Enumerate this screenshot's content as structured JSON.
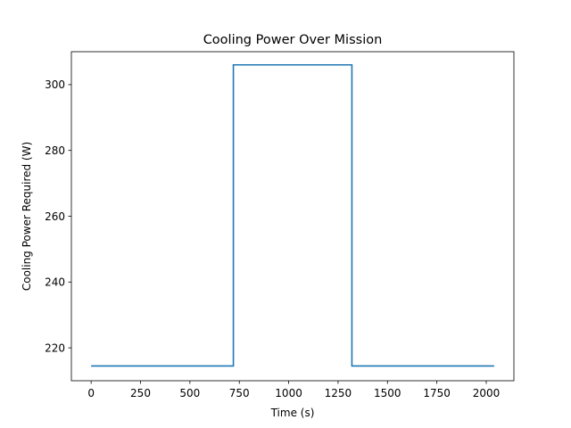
{
  "chart_data": {
    "type": "line",
    "title": "Cooling Power Over Mission",
    "xlabel": "Time (s)",
    "ylabel": "Cooling Power Required (W)",
    "xlim": [
      -100,
      2140
    ],
    "ylim": [
      210,
      310
    ],
    "xticks": [
      0,
      250,
      500,
      750,
      1000,
      1250,
      1500,
      1750,
      2000
    ],
    "yticks": [
      220,
      240,
      260,
      280,
      300
    ],
    "grid": false,
    "legend": "none",
    "series": [
      {
        "color": "#1f77b4",
        "x": [
          0,
          720,
          720,
          1320,
          1320,
          2040
        ],
        "y": [
          214.5,
          214.5,
          306,
          306,
          214.5,
          214.5
        ]
      }
    ]
  }
}
